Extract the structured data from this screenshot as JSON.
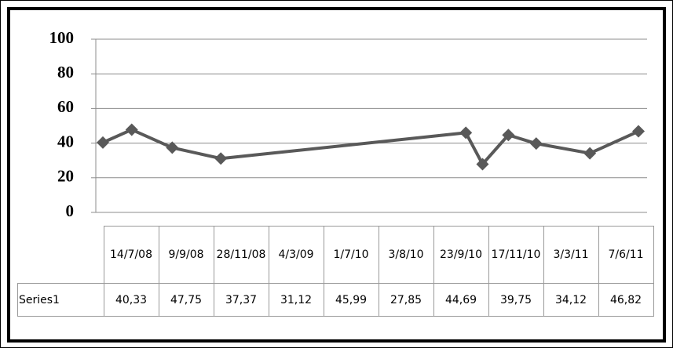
{
  "chart_data": {
    "type": "line",
    "categories": [
      "14/7/08",
      "9/9/08",
      "28/11/08",
      "4/3/09",
      "1/7/10",
      "3/8/10",
      "23/9/10",
      "17/11/10",
      "3/3/11",
      "7/6/11"
    ],
    "series": [
      {
        "name": "Series1",
        "color": "#595959",
        "values": [
          40.33,
          47.75,
          37.37,
          31.12,
          45.99,
          27.85,
          44.69,
          39.75,
          34.12,
          46.82
        ],
        "value_labels": [
          "40,33",
          "47,75",
          "37,37",
          "31,12",
          "45,99",
          "27,85",
          "44,69",
          "39,75",
          "34,12",
          "46,82"
        ]
      }
    ],
    "ylim": [
      0,
      100
    ],
    "yticks": [
      0,
      20,
      40,
      60,
      80,
      100
    ],
    "grid": true
  }
}
